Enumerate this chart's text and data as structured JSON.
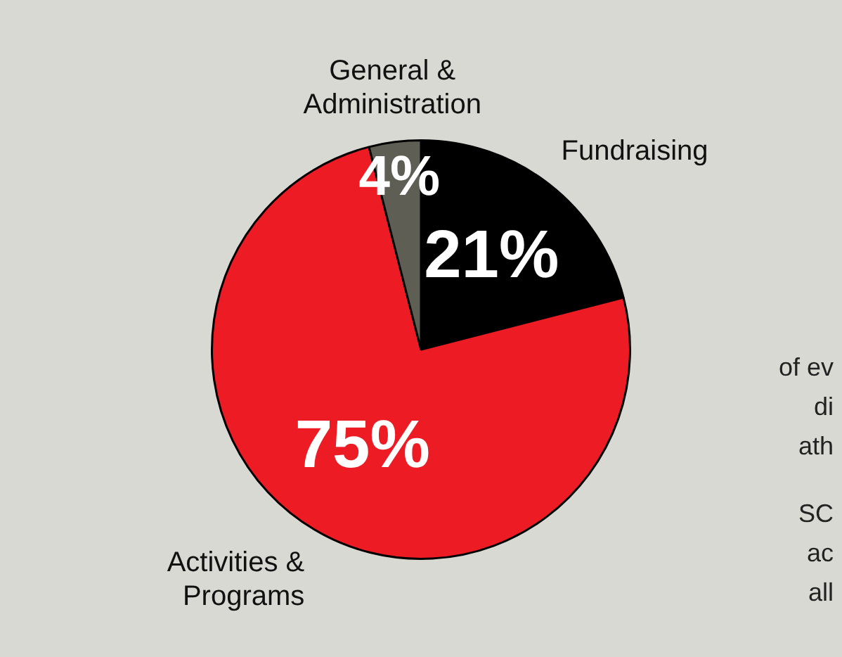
{
  "chart_data": {
    "type": "pie",
    "categories": [
      "Fundraising",
      "Activities & Programs",
      "General & Administration"
    ],
    "values": [
      21,
      75,
      4
    ],
    "colors": [
      "#000000",
      "#ed1c24",
      "#5f5e55"
    ],
    "value_labels": [
      "21%",
      "75%",
      "4%"
    ],
    "legend": false,
    "annotations": [
      "of ev",
      "di",
      "ath",
      "SC",
      "ac",
      "all"
    ]
  }
}
